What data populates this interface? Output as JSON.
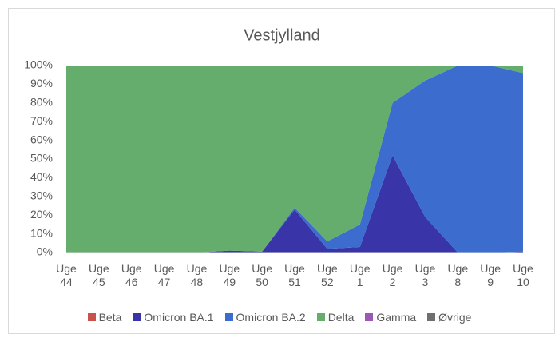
{
  "chart_data": {
    "type": "stacked-area",
    "title": "Vestjylland",
    "categories": [
      "Uge 44",
      "Uge 45",
      "Uge 46",
      "Uge 47",
      "Uge 48",
      "Uge 49",
      "Uge 50",
      "Uge 51",
      "Uge 52",
      "Uge 1",
      "Uge 2",
      "Uge 3",
      "Uge 8",
      "Uge 9",
      "Uge 10"
    ],
    "series": [
      {
        "name": "Beta",
        "color": "#c9534b",
        "values": [
          0,
          0,
          0,
          0,
          0,
          0,
          0,
          0,
          0,
          0,
          0,
          0,
          0,
          0,
          0
        ]
      },
      {
        "name": "Omicron BA.1",
        "color": "#3935a8",
        "values": [
          0,
          0,
          0,
          0,
          0,
          1,
          0.5,
          23,
          2,
          3,
          52,
          19,
          0,
          0,
          0.5
        ]
      },
      {
        "name": "Omicron BA.2",
        "color": "#3c6dce",
        "values": [
          0,
          0,
          0,
          0,
          0,
          0,
          0,
          1,
          4,
          12,
          28,
          73,
          100,
          100,
          95.5
        ]
      },
      {
        "name": "Delta",
        "color": "#64ad6c",
        "values": [
          100,
          100,
          100,
          100,
          100,
          99,
          99.5,
          76,
          94,
          85,
          20,
          8,
          0,
          0,
          4
        ]
      },
      {
        "name": "Gamma",
        "color": "#9b59b6",
        "values": [
          0,
          0,
          0,
          0,
          0,
          0,
          0,
          0,
          0,
          0,
          0,
          0,
          0,
          0,
          0
        ]
      },
      {
        "name": "Øvrige",
        "color": "#6f6f6f",
        "values": [
          0,
          0,
          0,
          0,
          0,
          0,
          0,
          0,
          0,
          0,
          0,
          0,
          0,
          0,
          0
        ]
      }
    ],
    "ylim": [
      0,
      100
    ],
    "yticks": [
      {
        "value": 0,
        "label": "0%"
      },
      {
        "value": 10,
        "label": "10%"
      },
      {
        "value": 20,
        "label": "20%"
      },
      {
        "value": 30,
        "label": "30%"
      },
      {
        "value": 40,
        "label": "40%"
      },
      {
        "value": 50,
        "label": "50%"
      },
      {
        "value": 60,
        "label": "60%"
      },
      {
        "value": 70,
        "label": "70%"
      },
      {
        "value": 80,
        "label": "80%"
      },
      {
        "value": 90,
        "label": "90%"
      },
      {
        "value": 100,
        "label": "100%"
      }
    ],
    "legend": "bottom"
  }
}
